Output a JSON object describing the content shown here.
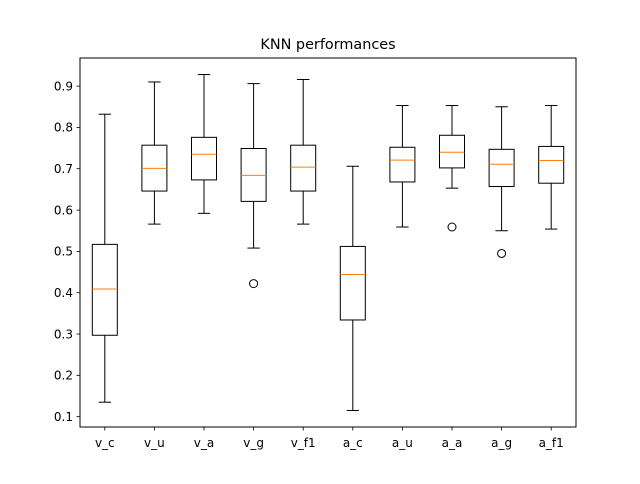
{
  "chart_data": {
    "type": "box",
    "title": "KNN performances",
    "xlabel": "",
    "ylabel": "",
    "ylim": [
      0.075,
      0.968
    ],
    "yticks": [
      0.1,
      0.2,
      0.3,
      0.4,
      0.5,
      0.6,
      0.7,
      0.8,
      0.9
    ],
    "grid": false,
    "categories": [
      "v_c",
      "v_u",
      "v_a",
      "v_g",
      "v_f1",
      "a_c",
      "a_u",
      "a_a",
      "a_g",
      "a_f1"
    ],
    "boxes": [
      {
        "label": "v_c",
        "whislo": 0.135,
        "q1": 0.297,
        "med": 0.409,
        "q3": 0.517,
        "whishi": 0.832,
        "fliers": []
      },
      {
        "label": "v_u",
        "whislo": 0.566,
        "q1": 0.646,
        "med": 0.701,
        "q3": 0.757,
        "whishi": 0.91,
        "fliers": []
      },
      {
        "label": "v_a",
        "whislo": 0.592,
        "q1": 0.673,
        "med": 0.735,
        "q3": 0.776,
        "whishi": 0.928,
        "fliers": []
      },
      {
        "label": "v_g",
        "whislo": 0.508,
        "q1": 0.621,
        "med": 0.684,
        "q3": 0.749,
        "whishi": 0.906,
        "fliers": [
          0.422
        ]
      },
      {
        "label": "v_f1",
        "whislo": 0.566,
        "q1": 0.646,
        "med": 0.704,
        "q3": 0.757,
        "whishi": 0.916,
        "fliers": []
      },
      {
        "label": "a_c",
        "whislo": 0.115,
        "q1": 0.334,
        "med": 0.444,
        "q3": 0.512,
        "whishi": 0.706,
        "fliers": []
      },
      {
        "label": "a_u",
        "whislo": 0.559,
        "q1": 0.668,
        "med": 0.721,
        "q3": 0.752,
        "whishi": 0.853,
        "fliers": []
      },
      {
        "label": "a_a",
        "whislo": 0.653,
        "q1": 0.702,
        "med": 0.74,
        "q3": 0.781,
        "whishi": 0.853,
        "fliers": [
          0.559
        ]
      },
      {
        "label": "a_g",
        "whislo": 0.55,
        "q1": 0.657,
        "med": 0.711,
        "q3": 0.747,
        "whishi": 0.85,
        "fliers": [
          0.495
        ]
      },
      {
        "label": "a_f1",
        "whislo": 0.554,
        "q1": 0.665,
        "med": 0.72,
        "q3": 0.754,
        "whishi": 0.853,
        "fliers": []
      }
    ],
    "colors": {
      "box": "#000000",
      "median": "#ff7f0e",
      "whisker": "#000000",
      "flier": "#000000",
      "background": "#ffffff"
    }
  }
}
